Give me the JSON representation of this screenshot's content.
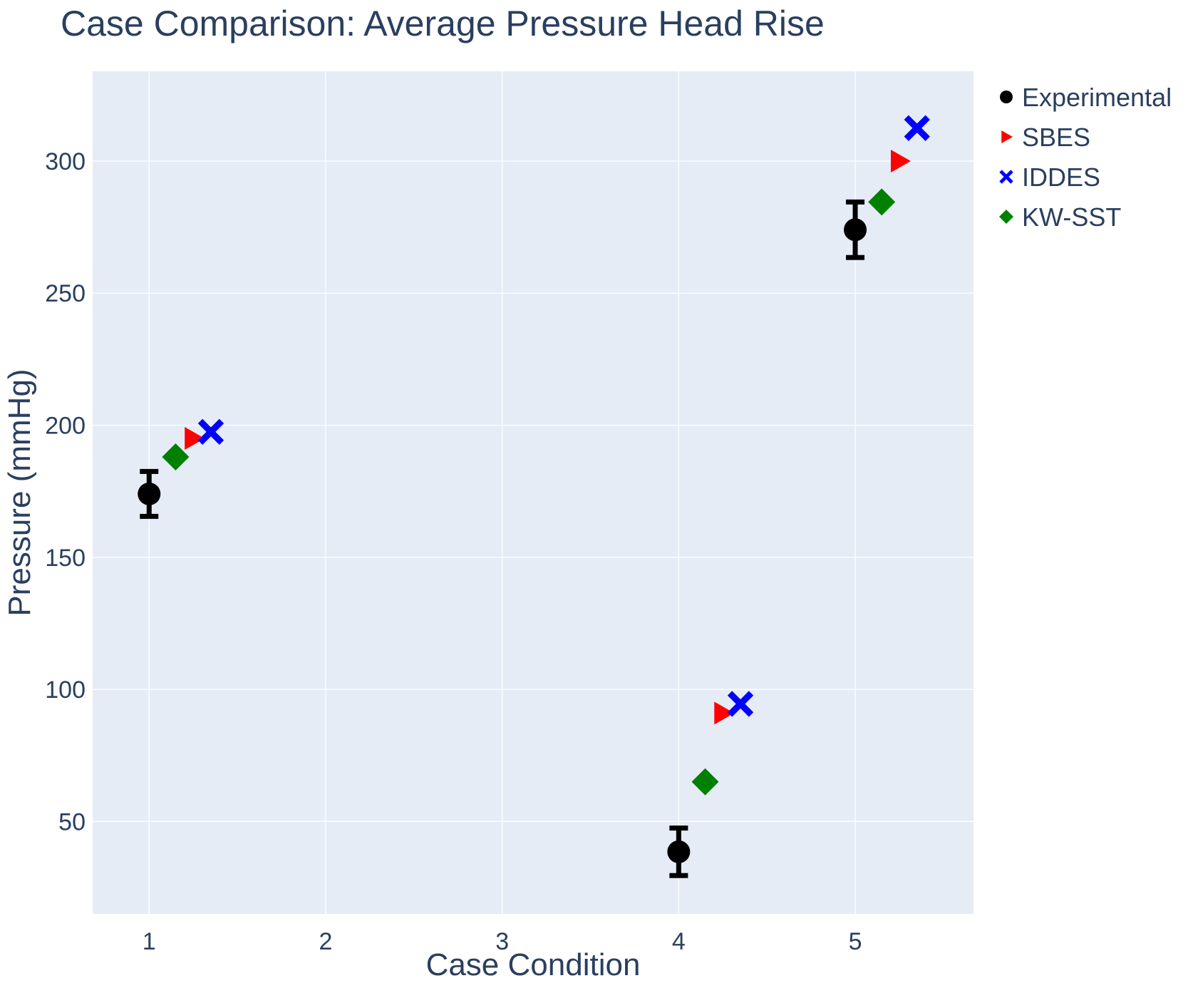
{
  "chart_data": {
    "type": "scatter",
    "title": "Case Comparison: Average Pressure Head Rise",
    "xlabel": "Case Condition",
    "ylabel": "Pressure (mmHg)",
    "xlim": [
      0.68,
      5.67
    ],
    "ylim": [
      15,
      334
    ],
    "xticks": [
      1,
      2,
      3,
      4,
      5
    ],
    "yticks": [
      50,
      100,
      150,
      200,
      250,
      300
    ],
    "grid": true,
    "legend_position": "top-right",
    "series": [
      {
        "name": "Experimental",
        "marker": "circle",
        "color": "#000000",
        "x": [
          1,
          4,
          5
        ],
        "y": [
          174,
          38.5,
          274
        ],
        "error": [
          8.5,
          9,
          10.5
        ]
      },
      {
        "name": "SBES",
        "marker": "triangle-right",
        "color": "#ff0000",
        "x": [
          1.25,
          4.25,
          5.25
        ],
        "y": [
          195,
          91,
          300
        ]
      },
      {
        "name": "IDDES",
        "marker": "x",
        "color": "#0000ff",
        "x": [
          1.35,
          4.35,
          5.35
        ],
        "y": [
          197.5,
          94.5,
          312.5
        ]
      },
      {
        "name": "KW-SST",
        "marker": "diamond",
        "color": "#008000",
        "x": [
          1.15,
          4.15,
          5.15
        ],
        "y": [
          188,
          65,
          284.5
        ]
      }
    ]
  }
}
